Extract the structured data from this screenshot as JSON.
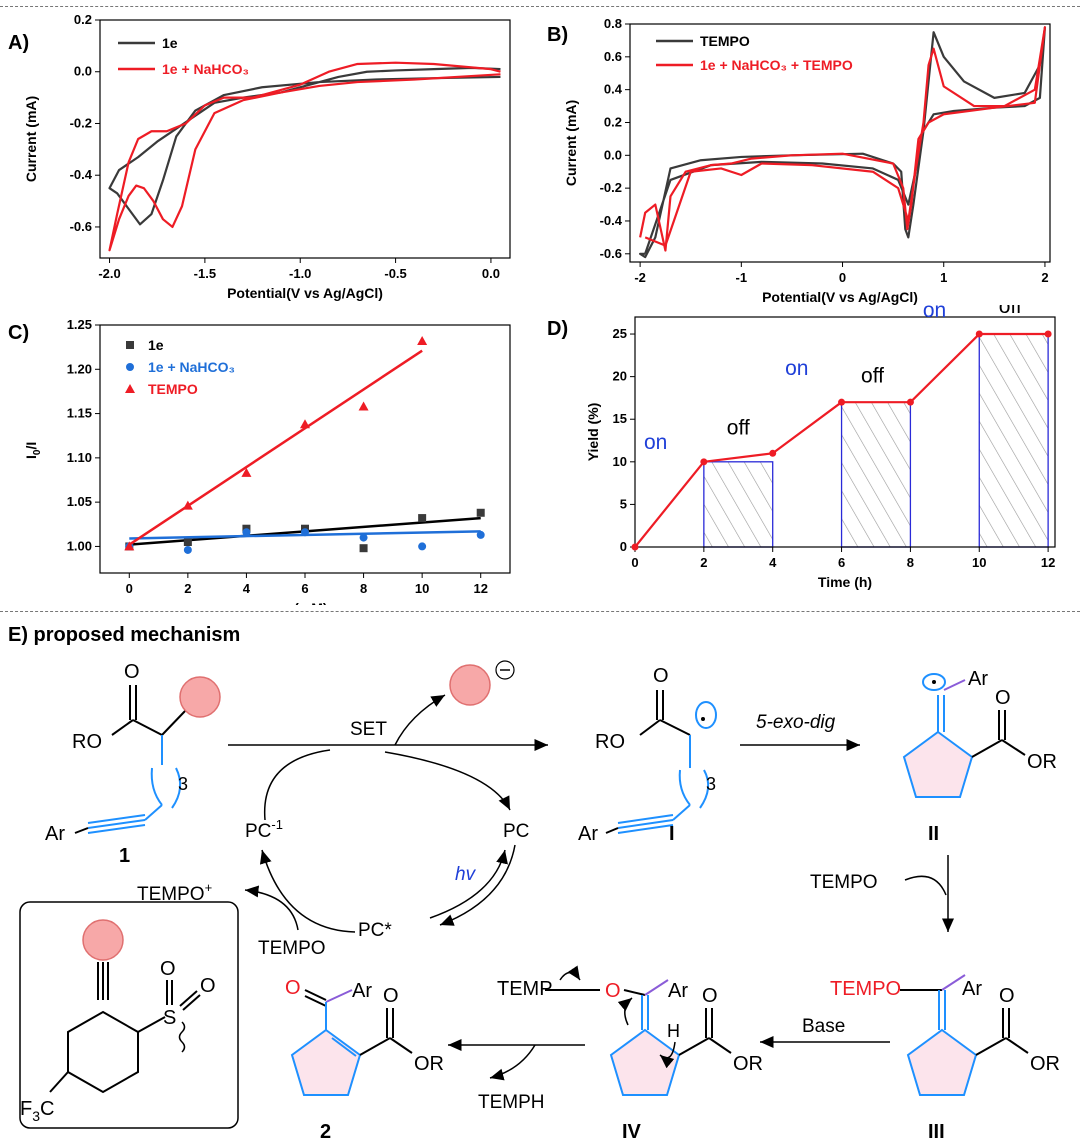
{
  "panels": {
    "A": {
      "label": "A)"
    },
    "B": {
      "label": "B)"
    },
    "C": {
      "label": "C)"
    },
    "D": {
      "label": "D)"
    },
    "E": {
      "label": "E) proposed mechanism"
    }
  },
  "colors": {
    "black_series": "#3a3a3a",
    "red_series": "#ee1c25",
    "blue_series": "#1f6fd8",
    "pink_circle": "#f7a8a8",
    "blue_bond": "#1e90ff"
  },
  "chart_data": [
    {
      "panel": "A",
      "type": "line",
      "title": "",
      "xlabel": "Potential(V vs Ag/AgCl)",
      "ylabel": "Current (mA)",
      "xlim": [
        -2.05,
        0.1
      ],
      "ylim": [
        -0.72,
        0.2
      ],
      "xticks": [
        "-2.0",
        "-1.5",
        "-1.0",
        "-0.5",
        "0.0"
      ],
      "yticks": [
        "0.2",
        "0.0",
        "-0.2",
        "-0.4",
        "-0.6"
      ],
      "legend_position": "top-left",
      "series": [
        {
          "name": "1e",
          "color": "#3a3a3a",
          "x": [
            0.05,
            -0.3,
            -0.6,
            -0.9,
            -1.2,
            -1.4,
            -1.55,
            -1.65,
            -1.72,
            -1.78,
            -1.84,
            -1.9,
            -1.96,
            -2.0,
            -1.95,
            -1.85,
            -1.75,
            -1.65,
            -1.55,
            -1.45,
            -1.3,
            -1.1,
            -0.95,
            -0.8,
            -0.65,
            -0.5,
            -0.3,
            -0.1,
            0.05
          ],
          "y": [
            -0.02,
            -0.025,
            -0.03,
            -0.04,
            -0.06,
            -0.09,
            -0.15,
            -0.25,
            -0.42,
            -0.55,
            -0.59,
            -0.53,
            -0.47,
            -0.45,
            -0.38,
            -0.33,
            -0.27,
            -0.22,
            -0.17,
            -0.12,
            -0.1,
            -0.08,
            -0.05,
            -0.02,
            0.0,
            0.005,
            0.01,
            0.015,
            0.01
          ]
        },
        {
          "name": "1e + NaHCO₃",
          "color": "#ee1c25",
          "x": [
            0.05,
            -0.4,
            -0.7,
            -0.9,
            -1.1,
            -1.3,
            -1.45,
            -1.55,
            -1.62,
            -1.67,
            -1.72,
            -1.77,
            -1.82,
            -1.86,
            -1.9,
            -1.95,
            -2.0,
            -1.96,
            -1.9,
            -1.85,
            -1.78,
            -1.7,
            -1.6,
            -1.5,
            -1.4,
            -1.25,
            -1.0,
            -0.85,
            -0.7,
            -0.5,
            -0.3,
            0.0,
            0.05
          ],
          "y": [
            -0.01,
            -0.03,
            -0.04,
            -0.055,
            -0.08,
            -0.11,
            -0.16,
            -0.3,
            -0.52,
            -0.6,
            -0.57,
            -0.5,
            -0.45,
            -0.44,
            -0.48,
            -0.57,
            -0.69,
            -0.55,
            -0.35,
            -0.26,
            -0.23,
            -0.23,
            -0.2,
            -0.13,
            -0.1,
            -0.1,
            -0.05,
            0.0,
            0.03,
            0.035,
            0.03,
            0.01,
            0.0
          ]
        }
      ]
    },
    {
      "panel": "B",
      "type": "line",
      "title": "",
      "xlabel": "Potential(V vs Ag/AgCl)",
      "ylabel": "Current (mA)",
      "xlim": [
        -2.1,
        2.05
      ],
      "ylim": [
        -0.65,
        0.8
      ],
      "xticks": [
        "-2",
        "-1",
        "0",
        "1",
        "2"
      ],
      "yticks": [
        "0.8",
        "0.6",
        "0.4",
        "0.2",
        "0.0",
        "-0.2",
        "-0.4",
        "-0.6"
      ],
      "legend_position": "top-left",
      "series": [
        {
          "name": "TEMPO",
          "color": "#3a3a3a",
          "x": [
            -1.95,
            -1.7,
            -1.3,
            -0.8,
            -0.2,
            0.3,
            0.55,
            0.65,
            0.72,
            0.8,
            0.85,
            0.9,
            1.0,
            1.2,
            1.5,
            1.8,
            1.95,
            2.0,
            1.95,
            1.8,
            1.5,
            1.1,
            0.9,
            0.8,
            0.7,
            0.65,
            0.62,
            0.58,
            0.5,
            0.2,
            -0.5,
            -1.0,
            -1.4,
            -1.7,
            -1.85,
            -1.95,
            -2.0,
            -1.95
          ],
          "y": [
            -0.6,
            -0.15,
            -0.06,
            -0.04,
            -0.05,
            -0.08,
            -0.15,
            -0.3,
            -0.1,
            0.15,
            0.45,
            0.75,
            0.6,
            0.45,
            0.35,
            0.38,
            0.55,
            0.78,
            0.35,
            0.3,
            0.29,
            0.27,
            0.25,
            0.15,
            -0.3,
            -0.5,
            -0.45,
            -0.1,
            -0.05,
            0.01,
            0.0,
            -0.01,
            -0.03,
            -0.08,
            -0.5,
            -0.62,
            -0.6,
            -0.6
          ]
        },
        {
          "name": "1e + NaHCO₃ + TEMPO",
          "color": "#ee1c25",
          "x": [
            -1.95,
            -1.75,
            -1.5,
            -1.2,
            -1.0,
            -0.8,
            -0.3,
            0.3,
            0.55,
            0.65,
            0.72,
            0.8,
            0.85,
            0.9,
            1.0,
            1.3,
            1.6,
            1.9,
            2.0,
            1.9,
            1.5,
            1.0,
            0.85,
            0.75,
            0.68,
            0.64,
            0.6,
            0.5,
            0.0,
            -0.5,
            -0.9,
            -1.1,
            -1.3,
            -1.55,
            -1.7,
            -1.75,
            -1.85,
            -1.95,
            -2.0
          ],
          "y": [
            -0.5,
            -0.55,
            -0.1,
            -0.08,
            -0.12,
            -0.05,
            -0.06,
            -0.1,
            -0.2,
            -0.4,
            -0.1,
            0.2,
            0.55,
            0.65,
            0.42,
            0.3,
            0.3,
            0.4,
            0.78,
            0.32,
            0.29,
            0.25,
            0.2,
            0.1,
            -0.3,
            -0.45,
            -0.2,
            -0.05,
            0.01,
            0.0,
            -0.02,
            -0.05,
            -0.06,
            -0.1,
            -0.25,
            -0.58,
            -0.3,
            -0.35,
            -0.5
          ]
        }
      ]
    },
    {
      "panel": "C",
      "type": "scatter",
      "title": "",
      "xlabel": "c (mM)",
      "ylabel": "I0/I",
      "ylabel_main": "I",
      "ylabel_sub": "0",
      "ylabel_rest": "/I",
      "xlim": [
        -1,
        13
      ],
      "ylim": [
        0.97,
        1.25
      ],
      "xticks": [
        "0",
        "2",
        "4",
        "6",
        "8",
        "10",
        "12"
      ],
      "yticks": [
        "1.25",
        "1.20",
        "1.15",
        "1.10",
        "1.05",
        "1.00"
      ],
      "legend_position": "top-left",
      "series": [
        {
          "name": "1e",
          "color": "#3a3a3a",
          "marker": "square",
          "x": [
            0,
            2,
            4,
            6,
            8,
            10,
            12
          ],
          "y": [
            1.0,
            1.005,
            1.02,
            1.02,
            0.998,
            1.032,
            1.038
          ],
          "fit": [
            [
              0,
              1.002
            ],
            [
              12,
              1.032
            ]
          ],
          "fit_color": "#000000"
        },
        {
          "name": "1e + NaHCO₃",
          "color": "#1f6fd8",
          "marker": "circle",
          "x": [
            0,
            2,
            4,
            6,
            8,
            10,
            12
          ],
          "y": [
            1.0,
            0.996,
            1.016,
            1.016,
            1.01,
            1.0,
            1.013
          ],
          "fit": [
            [
              0,
              1.009
            ],
            [
              12,
              1.017
            ]
          ],
          "fit_color": "#1f6fd8"
        },
        {
          "name": "TEMPO",
          "color": "#ee1c25",
          "marker": "triangle",
          "x": [
            0,
            2,
            4,
            6,
            8,
            10
          ],
          "y": [
            1.0,
            1.046,
            1.083,
            1.138,
            1.158,
            1.232
          ],
          "fit": [
            [
              0,
              1.002
            ],
            [
              10,
              1.221
            ]
          ],
          "fit_color": "#ee1c25"
        }
      ]
    },
    {
      "panel": "D",
      "type": "line",
      "title": "",
      "xlabel": "Time (h)",
      "ylabel": "Yield (%)",
      "xlim": [
        0,
        12.2
      ],
      "ylim": [
        0,
        27
      ],
      "xticks": [
        "0",
        "2",
        "4",
        "6",
        "8",
        "10",
        "12"
      ],
      "yticks": [
        "0",
        "5",
        "10",
        "15",
        "20",
        "25"
      ],
      "series": [
        {
          "name": "yield",
          "color": "#ee1c25",
          "x": [
            0,
            2,
            4,
            6,
            8,
            10,
            12
          ],
          "y": [
            0,
            10,
            11,
            17,
            17,
            25,
            25
          ]
        }
      ],
      "annotations": [
        {
          "text": "on",
          "x": 0.6,
          "y": 11.5,
          "color": "#1f3fd8"
        },
        {
          "text": "off",
          "x": 3.0,
          "y": 13.2,
          "color": "#000000"
        },
        {
          "text": "on",
          "x": 4.7,
          "y": 20.2,
          "color": "#1f3fd8"
        },
        {
          "text": "off",
          "x": 6.9,
          "y": 19.3,
          "color": "#000000"
        },
        {
          "text": "on",
          "x": 8.7,
          "y": 27.0,
          "color": "#1f3fd8"
        },
        {
          "text": "off",
          "x": 10.9,
          "y": 27.5,
          "color": "#000000"
        }
      ],
      "off_intervals": [
        [
          2,
          4
        ],
        [
          6,
          8
        ],
        [
          10,
          12
        ]
      ]
    }
  ],
  "mechanism": {
    "labels": {
      "SET": "SET",
      "exo": "5-exo-dig",
      "PC": "PC",
      "PC_minus": "PC",
      "PC_minus_sup": "-1",
      "PC_star": "PC*",
      "hv": "hv",
      "TEMPO_plus": "TEMPO",
      "TEMPO_plus_sup": "+",
      "TEMPO_left": "TEMPO",
      "TEMPO_right": "TEMPO",
      "TEMPO_III": "TEMPO",
      "Base": "Base",
      "TEMPH": "TEMPH",
      "TEMP": "TEMP",
      "n1": "1",
      "nI": "I",
      "nII": "II",
      "nIII": "III",
      "nIV": "IV",
      "n2": "2",
      "RO": "RO",
      "OR": "OR",
      "Ar": "Ar",
      "O": "O",
      "H": "H",
      "three": "3",
      "F3C_main": "F",
      "F3C_sub": "3",
      "F3C_C": "C",
      "S": "S"
    }
  }
}
